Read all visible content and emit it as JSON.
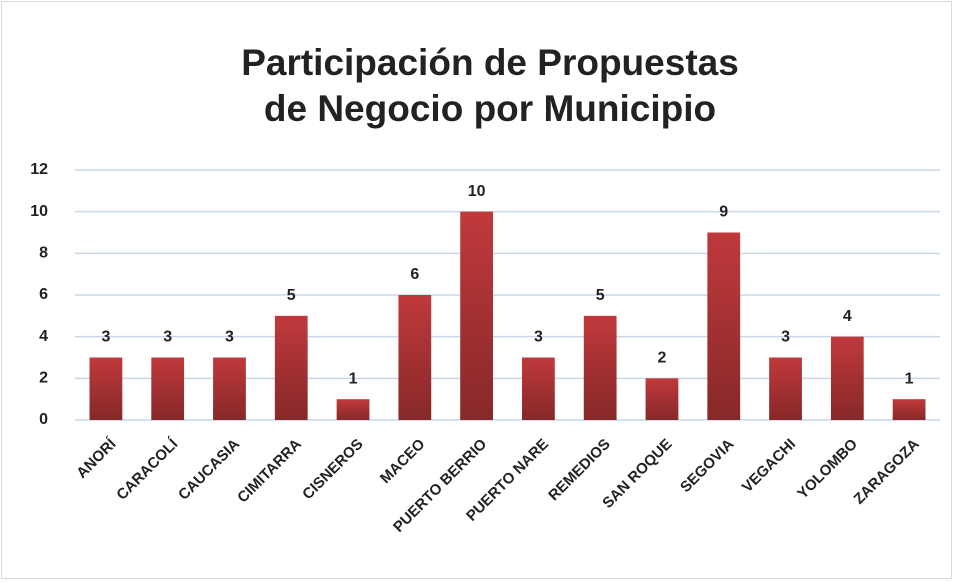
{
  "chart_data": {
    "type": "bar",
    "title": "Participación de Propuestas de Negocio por Municipio",
    "categories": [
      "ANORÍ",
      "CARACOLÍ",
      "CAUCASIA",
      "CIMITARRA",
      "CISNEROS",
      "MACEO",
      "PUERTO BERRIO",
      "PUERTO NARE",
      "REMEDIOS",
      "SAN ROQUE",
      "SEGOVIA",
      "VEGACHI",
      "YOLOMBO",
      "ZARAGOZA"
    ],
    "values": [
      3,
      3,
      3,
      5,
      1,
      6,
      10,
      3,
      5,
      2,
      9,
      3,
      4,
      1
    ],
    "color": "#c0393b",
    "ylim": [
      0,
      12
    ],
    "yticks": [
      0,
      2,
      4,
      6,
      8,
      10,
      12
    ],
    "grid": true
  }
}
